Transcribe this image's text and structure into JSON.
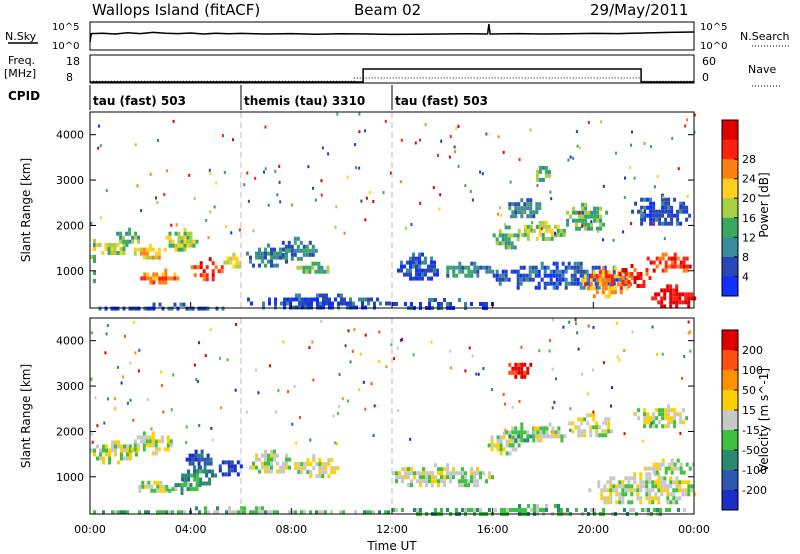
{
  "header": {
    "title": "Wallops Island (fitACF)",
    "beam": "Beam 02",
    "date": "29/May/2011"
  },
  "sky_panel": {
    "left_label": "N.Sky",
    "right_label": "N.Search",
    "tick_top": "10^5",
    "tick_bottom": "10^0",
    "trace": [
      [
        0.0,
        0.3
      ],
      [
        0.05,
        0.72
      ],
      [
        0.5,
        0.74
      ],
      [
        1.0,
        0.7
      ],
      [
        1.5,
        0.76
      ],
      [
        2.0,
        0.72
      ],
      [
        2.5,
        0.78
      ],
      [
        3.0,
        0.74
      ],
      [
        3.5,
        0.72
      ],
      [
        4.0,
        0.75
      ],
      [
        4.5,
        0.7
      ],
      [
        5.0,
        0.74
      ],
      [
        5.5,
        0.71
      ],
      [
        6.0,
        0.73
      ],
      [
        7.0,
        0.7
      ],
      [
        8.0,
        0.72
      ],
      [
        9.0,
        0.69
      ],
      [
        10.0,
        0.71
      ],
      [
        11.0,
        0.7
      ],
      [
        12.0,
        0.68
      ],
      [
        13.0,
        0.69
      ],
      [
        14.0,
        0.7
      ],
      [
        15.0,
        0.71
      ],
      [
        15.8,
        0.7
      ],
      [
        15.85,
        1.2
      ],
      [
        15.9,
        0.7
      ],
      [
        17.0,
        0.72
      ],
      [
        18.0,
        0.7
      ],
      [
        19.0,
        0.71
      ],
      [
        20.0,
        0.73
      ],
      [
        21.0,
        0.72
      ],
      [
        22.0,
        0.75
      ],
      [
        23.0,
        0.78
      ],
      [
        24.0,
        0.8
      ]
    ]
  },
  "freq_panel": {
    "left_label_1": "Freq.",
    "left_label_2": "[MHz]",
    "right_label": "Nave",
    "left_tick_top": "18",
    "left_tick_bottom": "8",
    "right_tick_top": "60",
    "right_tick_bottom": "0",
    "freq_trace": [
      [
        0,
        8
      ],
      [
        10.85,
        8
      ],
      [
        10.85,
        13.2
      ],
      [
        21.9,
        13.2
      ],
      [
        21.9,
        8
      ],
      [
        24,
        8
      ]
    ],
    "nave_trace": [
      [
        0,
        8.3
      ],
      [
        10.5,
        8.3
      ],
      [
        10.5,
        9.6
      ],
      [
        21.9,
        9.6
      ],
      [
        21.9,
        8.3
      ],
      [
        24,
        8.3
      ]
    ]
  },
  "cpid": {
    "label": "CPID",
    "segments": [
      {
        "name": "tau (fast) 503",
        "start": 0,
        "end": 6
      },
      {
        "name": "themis (tau) 3310",
        "start": 6,
        "end": 12
      },
      {
        "name": "tau (fast) 503",
        "start": 12,
        "end": 24
      }
    ]
  },
  "chart_data": [
    {
      "type": "heatmap",
      "name": "power",
      "ylabel": "Slant Range [km]",
      "xlim": [
        0,
        24
      ],
      "ylim": [
        180,
        4500
      ],
      "yticks": [
        "1000",
        "2000",
        "3000",
        "4000"
      ],
      "colorbar_label": "Power [dB]",
      "colorbar_ticks": [
        "4",
        "8",
        "12",
        "16",
        "20",
        "24",
        "28"
      ],
      "colorbar_colors": [
        "#1030ff",
        "#2848b8",
        "#3a8a9a",
        "#3aa860",
        "#a8d040",
        "#ffd020",
        "#ff8010",
        "#ff2010",
        "#e00000"
      ],
      "regions": [
        {
          "t0": 0.0,
          "t1": 0.2,
          "r0": 800,
          "r1": 1700,
          "level": 3
        },
        {
          "t0": 0.1,
          "t1": 5.8,
          "r0": 180,
          "r1": 300,
          "level": 1
        },
        {
          "t0": 0.1,
          "t1": 1.5,
          "r0": 1400,
          "r1": 1700,
          "level": 4
        },
        {
          "t0": 0.8,
          "t1": 2.0,
          "r0": 1600,
          "r1": 1950,
          "level": 3
        },
        {
          "t0": 1.5,
          "t1": 3.0,
          "r0": 1300,
          "r1": 1600,
          "level": 5
        },
        {
          "t0": 2.0,
          "t1": 3.5,
          "r0": 750,
          "r1": 1050,
          "level": 6
        },
        {
          "t0": 3.0,
          "t1": 4.2,
          "r0": 1500,
          "r1": 1950,
          "level": 4
        },
        {
          "t0": 4.0,
          "t1": 5.2,
          "r0": 850,
          "r1": 1300,
          "level": 7
        },
        {
          "t0": 5.3,
          "t1": 6.0,
          "r0": 1100,
          "r1": 1400,
          "level": 4
        },
        {
          "t0": 6.2,
          "t1": 7.8,
          "r0": 1100,
          "r1": 1600,
          "level": 2
        },
        {
          "t0": 7.5,
          "t1": 9.0,
          "r0": 1300,
          "r1": 1750,
          "level": 2
        },
        {
          "t0": 8.2,
          "t1": 9.6,
          "r0": 950,
          "r1": 1200,
          "level": 3
        },
        {
          "t0": 6.0,
          "t1": 12.0,
          "r0": 180,
          "r1": 500,
          "level": 1
        },
        {
          "t0": 12.2,
          "t1": 13.8,
          "r0": 800,
          "r1": 1400,
          "level": 1
        },
        {
          "t0": 13.8,
          "t1": 16.0,
          "r0": 900,
          "r1": 1200,
          "level": 2
        },
        {
          "t0": 12.0,
          "t1": 16.0,
          "r0": 180,
          "r1": 400,
          "level": 1
        },
        {
          "t0": 16.0,
          "t1": 17.0,
          "r0": 1500,
          "r1": 2000,
          "level": 3
        },
        {
          "t0": 16.5,
          "t1": 18.0,
          "r0": 2200,
          "r1": 2600,
          "level": 2
        },
        {
          "t0": 17.0,
          "t1": 18.8,
          "r0": 1700,
          "r1": 2100,
          "level": 4
        },
        {
          "t0": 18.8,
          "t1": 20.5,
          "r0": 1900,
          "r1": 2500,
          "level": 3
        },
        {
          "t0": 16.0,
          "t1": 21.5,
          "r0": 600,
          "r1": 1200,
          "level": 1
        },
        {
          "t0": 17.6,
          "t1": 18.2,
          "r0": 3000,
          "r1": 3400,
          "level": 3
        },
        {
          "t0": 19.5,
          "t1": 21.5,
          "r0": 450,
          "r1": 1100,
          "level": 6
        },
        {
          "t0": 21.0,
          "t1": 22.2,
          "r0": 650,
          "r1": 1150,
          "level": 7
        },
        {
          "t0": 22.0,
          "t1": 24.0,
          "r0": 1000,
          "r1": 1400,
          "level": 7
        },
        {
          "t0": 22.3,
          "t1": 24.0,
          "r0": 180,
          "r1": 700,
          "level": 8
        },
        {
          "t0": 21.5,
          "t1": 23.8,
          "r0": 2000,
          "r1": 2700,
          "level": 1
        }
      ]
    },
    {
      "type": "heatmap",
      "name": "velocity",
      "xlabel": "Time UT",
      "ylabel": "Slant Range [km]",
      "xlim": [
        0,
        24
      ],
      "ylim": [
        180,
        4500
      ],
      "xticks": [
        "00:00",
        "04:00",
        "08:00",
        "12:00",
        "16:00",
        "20:00",
        "00:00"
      ],
      "yticks": [
        "1000",
        "2000",
        "3000",
        "4000"
      ],
      "colorbar_label": "Velocity [m s^-1]",
      "colorbar_ticks": [
        "200",
        "100",
        "50",
        "15",
        "-15",
        "-50",
        "-100",
        "-200"
      ],
      "colorbar_colors": [
        "#1c2cc8",
        "#2c58b0",
        "#2a8a70",
        "#40c040",
        "#c8c8c8",
        "#ffd000",
        "#ff9000",
        "#ff5010",
        "#e00000"
      ],
      "regions": [
        {
          "t0": 0.0,
          "t1": 1.8,
          "r0": 1300,
          "r1": 1800,
          "level": 4
        },
        {
          "t0": 1.5,
          "t1": 3.2,
          "r0": 1500,
          "r1": 2000,
          "level": 4
        },
        {
          "t0": 1.8,
          "t1": 3.2,
          "r0": 650,
          "r1": 1000,
          "level": 4
        },
        {
          "t0": 3.0,
          "t1": 4.5,
          "r0": 650,
          "r1": 950,
          "level": 3
        },
        {
          "t0": 3.5,
          "t1": 5.0,
          "r0": 850,
          "r1": 1250,
          "level": 2
        },
        {
          "t0": 3.8,
          "t1": 4.8,
          "r0": 1200,
          "r1": 1600,
          "level": 1
        },
        {
          "t0": 5.0,
          "t1": 6.0,
          "r0": 1050,
          "r1": 1450,
          "level": 0
        },
        {
          "t0": 6.2,
          "t1": 8.0,
          "r0": 1100,
          "r1": 1600,
          "level": 4
        },
        {
          "t0": 8.0,
          "t1": 9.8,
          "r0": 1000,
          "r1": 1500,
          "level": 4
        },
        {
          "t0": 0.0,
          "t1": 12.0,
          "r0": 180,
          "r1": 350,
          "level": 3
        },
        {
          "t0": 12.0,
          "t1": 16.0,
          "r0": 800,
          "r1": 1300,
          "level": 4
        },
        {
          "t0": 12.0,
          "t1": 24.0,
          "r0": 180,
          "r1": 400,
          "level": 3
        },
        {
          "t0": 15.8,
          "t1": 17.0,
          "r0": 1500,
          "r1": 2000,
          "level": 4
        },
        {
          "t0": 16.5,
          "t1": 17.8,
          "r0": 1800,
          "r1": 2200,
          "level": 3
        },
        {
          "t0": 17.5,
          "t1": 19.0,
          "r0": 1800,
          "r1": 2200,
          "level": 4
        },
        {
          "t0": 19.0,
          "t1": 20.8,
          "r0": 1900,
          "r1": 2400,
          "level": 4
        },
        {
          "t0": 16.5,
          "t1": 17.6,
          "r0": 3200,
          "r1": 3600,
          "level": 8
        },
        {
          "t0": 19.8,
          "t1": 24.0,
          "r0": 400,
          "r1": 1100,
          "level": 4
        },
        {
          "t0": 22.0,
          "t1": 24.0,
          "r0": 1100,
          "r1": 1400,
          "level": 4
        },
        {
          "t0": 21.5,
          "t1": 23.8,
          "r0": 2100,
          "r1": 2600,
          "level": 4
        }
      ]
    }
  ]
}
